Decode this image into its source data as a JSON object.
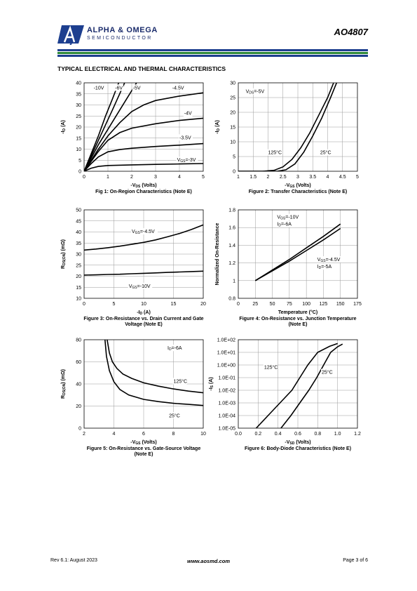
{
  "header": {
    "brand_name": "ALPHA & OMEGA",
    "brand_sub": "SEMICONDUCTOR",
    "part_number": "AO4807",
    "stripe_colors": [
      "#1d3f8f",
      "#ffffff",
      "#2f8a3a",
      "#ffffff",
      "#1d3f8f"
    ]
  },
  "section_title": "TYPICAL ELECTRICAL AND THERMAL CHARACTERISTICS",
  "footer": {
    "left": "Rev 6.1: August 2023",
    "center": "www.aosmd.com",
    "right": "Page 3 of 6"
  },
  "chart_data": [
    {
      "type": "line",
      "caption": "Fig 1: On-Region Characteristics (Note E)",
      "xlabel": "-V_DS (Volts)",
      "ylabel": "-I_D (A)",
      "xlim": [
        0,
        5
      ],
      "ylim": [
        0,
        40
      ],
      "xticks": [
        "0",
        "1",
        "2",
        "3",
        "4",
        "5"
      ],
      "yticks": [
        "0",
        "5",
        "10",
        "15",
        "20",
        "25",
        "30",
        "35",
        "40"
      ],
      "grid": true,
      "series": [
        {
          "name": "-10V",
          "x": [
            0,
            0.3,
            0.6,
            0.9,
            1.2,
            1.45
          ],
          "y": [
            0,
            8,
            16,
            25,
            33,
            40
          ]
        },
        {
          "name": "-6V",
          "x": [
            0,
            0.3,
            0.6,
            0.9,
            1.2,
            1.45,
            1.7
          ],
          "y": [
            0,
            7,
            14,
            21,
            28,
            34,
            40
          ]
        },
        {
          "name": "-5V",
          "x": [
            0,
            0.3,
            0.6,
            1.0,
            1.4,
            1.8,
            2.2
          ],
          "y": [
            0,
            6,
            12,
            19,
            26,
            33,
            40
          ]
        },
        {
          "name": "-4.5V",
          "x": [
            0,
            0.3,
            0.6,
            1.0,
            1.5,
            2.0,
            2.5,
            3.0,
            4.0,
            5.0
          ],
          "y": [
            0,
            5,
            10,
            16,
            22,
            27,
            30,
            32,
            34,
            35.5
          ]
        },
        {
          "name": "-4V",
          "x": [
            0,
            0.3,
            0.6,
            1.0,
            1.5,
            2.0,
            3.0,
            4.0,
            5.0
          ],
          "y": [
            0,
            4.5,
            9,
            14,
            17.5,
            19.5,
            21.5,
            23,
            24
          ]
        },
        {
          "name": "-3.5V",
          "x": [
            0,
            0.3,
            0.6,
            1.0,
            1.5,
            2.0,
            3.0,
            4.0,
            5.0
          ],
          "y": [
            0,
            3.5,
            6.5,
            8.8,
            9.8,
            10.4,
            11.2,
            11.8,
            12.5
          ]
        },
        {
          "name": "V_GS=-3V",
          "x": [
            0,
            0.3,
            0.6,
            1.0,
            2.0,
            3.0,
            4.0,
            5.0
          ],
          "y": [
            0,
            1.4,
            2.2,
            2.6,
            2.9,
            3.1,
            3.3,
            3.5
          ]
        }
      ],
      "annotations": [
        {
          "text": "-10V",
          "x": 0.4,
          "y": 37
        },
        {
          "text": "-6V",
          "x": 1.3,
          "y": 37
        },
        {
          "text": "-5V",
          "x": 2.05,
          "y": 37
        },
        {
          "text": "-4.5V",
          "x": 3.7,
          "y": 37
        },
        {
          "text": "-4V",
          "x": 4.2,
          "y": 25.5
        },
        {
          "text": "-3.5V",
          "x": 4.0,
          "y": 14.5
        },
        {
          "text": "V_GS=-3V",
          "x": 3.9,
          "y": 4.4
        }
      ]
    },
    {
      "type": "line",
      "caption": "Figure 2: Transfer Characteristics (Note E)",
      "xlabel": "-V_GS (Volts)",
      "ylabel": "-I_D (A)",
      "xlim": [
        1,
        5
      ],
      "ylim": [
        0,
        30
      ],
      "xticks": [
        "1",
        "1.5",
        "2",
        "2.5",
        "3",
        "3.5",
        "4",
        "4.5",
        "5"
      ],
      "yticks": [
        "0",
        "5",
        "10",
        "15",
        "20",
        "25",
        "30"
      ],
      "grid": true,
      "series": [
        {
          "name": "125°C",
          "x": [
            1.0,
            1.8,
            2.2,
            2.5,
            2.8,
            3.1,
            3.4,
            3.7,
            4.0,
            4.2
          ],
          "y": [
            0,
            0,
            0.3,
            1.5,
            4,
            8,
            13,
            19,
            25,
            30
          ]
        },
        {
          "name": "25°C",
          "x": [
            1.0,
            2.3,
            2.6,
            2.9,
            3.2,
            3.5,
            3.8,
            4.1,
            4.3
          ],
          "y": [
            0,
            0,
            0.5,
            2.5,
            6.5,
            12,
            18,
            25,
            30
          ]
        }
      ],
      "annotations": [
        {
          "text": "V_DS=-5V",
          "x": 1.25,
          "y": 26.5
        },
        {
          "text": "125°C",
          "x": 2.0,
          "y": 5.8
        },
        {
          "text": "25°C",
          "x": 3.75,
          "y": 5.8
        }
      ]
    },
    {
      "type": "line",
      "caption_lines": [
        "Figure 3: On-Resistance vs. Drain Current and Gate",
        "Voltage (Note E)"
      ],
      "xlabel": "-I_D (A)",
      "ylabel": "R_DS(ON) (mΩ)",
      "xlim": [
        0,
        20
      ],
      "ylim": [
        10,
        50
      ],
      "xticks": [
        "0",
        "5",
        "10",
        "15",
        "20"
      ],
      "yticks": [
        "10",
        "15",
        "20",
        "25",
        "30",
        "35",
        "40",
        "45",
        "50"
      ],
      "grid": true,
      "series": [
        {
          "name": "V_GS=-4.5V",
          "x": [
            0,
            2,
            4,
            6,
            8,
            10,
            12,
            14,
            16,
            18,
            20
          ],
          "y": [
            31.8,
            32.3,
            32.9,
            33.6,
            34.4,
            35.3,
            36.4,
            37.8,
            39.3,
            41.1,
            43.2
          ]
        },
        {
          "name": "V_GS=-10V",
          "x": [
            0,
            2,
            4,
            6,
            8,
            10,
            12,
            14,
            16,
            18,
            20
          ],
          "y": [
            20.5,
            20.6,
            20.8,
            20.9,
            21.1,
            21.3,
            21.5,
            21.7,
            21.9,
            22.1,
            22.3
          ]
        }
      ],
      "annotations": [
        {
          "text": "V_GS=-4.5V",
          "x": 8.0,
          "y": 39.5
        },
        {
          "text": "V_GS=-10V",
          "x": 7.5,
          "y": 14.8
        }
      ]
    },
    {
      "type": "line",
      "caption_lines": [
        "Figure 4: On-Resistance vs. Junction Temperature",
        "(Note E)"
      ],
      "xlabel": "Temperature (°C)",
      "ylabel": "Normalized On-Resistance",
      "xlim": [
        0,
        175
      ],
      "ylim": [
        0.8,
        1.8
      ],
      "xticks": [
        "0",
        "25",
        "50",
        "75",
        "100",
        "125",
        "150",
        "175"
      ],
      "yticks": [
        "0.8",
        "1",
        "1.2",
        "1.4",
        "1.6",
        "1.8"
      ],
      "grid": true,
      "series": [
        {
          "name": "V_GS=-10V, I_D=-6A",
          "x": [
            25,
            50,
            75,
            100,
            125,
            150
          ],
          "y": [
            1.0,
            1.12,
            1.24,
            1.37,
            1.5,
            1.64
          ]
        },
        {
          "name": "V_GS=-4.5V, I_D=-5A",
          "x": [
            25,
            50,
            75,
            100,
            125,
            150
          ],
          "y": [
            1.0,
            1.11,
            1.22,
            1.34,
            1.46,
            1.59
          ]
        }
      ],
      "annotations": [
        {
          "text": "V_GS=-10V",
          "x": 57,
          "y": 1.7
        },
        {
          "text": "I_D=-6A",
          "x": 57,
          "y": 1.62
        },
        {
          "text": "V_GS=-4.5V",
          "x": 116,
          "y": 1.22
        },
        {
          "text": "I_D=-5A",
          "x": 116,
          "y": 1.14
        }
      ]
    },
    {
      "type": "line",
      "caption_lines": [
        "Figure 5: On-Resistance vs. Gate-Source Voltage",
        "(Note E)"
      ],
      "xlabel": "-V_GS (Volts)",
      "ylabel": "R_DS(ON) (mΩ)",
      "xlim": [
        2,
        10
      ],
      "ylim": [
        0,
        80
      ],
      "xticks": [
        "2",
        "4",
        "6",
        "8",
        "10"
      ],
      "yticks": [
        "0",
        "20",
        "40",
        "60",
        "80"
      ],
      "grid": true,
      "series": [
        {
          "name": "125°C",
          "x": [
            3.55,
            3.7,
            3.9,
            4.2,
            4.6,
            5.2,
            6.0,
            7.0,
            8.0,
            9.0,
            10.0
          ],
          "y": [
            80,
            68,
            60,
            54,
            49,
            45,
            41,
            38,
            35.5,
            33.5,
            32
          ]
        },
        {
          "name": "25°C",
          "x": [
            3.4,
            3.5,
            3.7,
            4.0,
            4.4,
            5.0,
            6.0,
            7.0,
            8.0,
            9.0,
            10.0
          ],
          "y": [
            80,
            65,
            52,
            42,
            35,
            30,
            26,
            24,
            22.5,
            21.5,
            20.5
          ]
        }
      ],
      "annotations": [
        {
          "text": "I_D=-6A",
          "x": 7.6,
          "y": 71
        },
        {
          "text": "125°C",
          "x": 8.0,
          "y": 41
        },
        {
          "text": "25°C",
          "x": 7.7,
          "y": 10
        }
      ]
    },
    {
      "type": "line",
      "caption": "Figure 6: Body-Diode Characteristics (Note E)",
      "xlabel": "-V_SD (Volts)",
      "ylabel": "-I_S (A)",
      "xlim": [
        0,
        1.2
      ],
      "ylim": [
        -5,
        2
      ],
      "yscale": "log",
      "xticks": [
        "0.0",
        "0.2",
        "0.4",
        "0.6",
        "0.8",
        "1.0",
        "1.2"
      ],
      "yticks": [
        "1.0E-05",
        "1.0E-04",
        "1.0E-03",
        "1.0E-02",
        "1.0E-01",
        "1.0E+00",
        "1.0E+01",
        "1.0E+02"
      ],
      "grid": true,
      "series": [
        {
          "name": "125°C",
          "x": [
            0.18,
            0.3,
            0.42,
            0.54,
            0.62,
            0.7,
            0.8,
            0.92,
            1.0
          ],
          "y": [
            1e-05,
            0.0001,
            0.001,
            0.01,
            0.1,
            1,
            10,
            30,
            50
          ]
        },
        {
          "name": "25°C",
          "x": [
            0.43,
            0.53,
            0.62,
            0.71,
            0.79,
            0.86,
            0.93,
            1.0,
            1.05
          ],
          "y": [
            1e-05,
            0.0001,
            0.001,
            0.01,
            0.1,
            1,
            10,
            28,
            45
          ]
        }
      ],
      "annotations": [
        {
          "text": "125°C",
          "x": 0.26,
          "y": 0.5
        },
        {
          "text": "25°C",
          "x": 0.84,
          "y": 0.2
        }
      ]
    }
  ]
}
